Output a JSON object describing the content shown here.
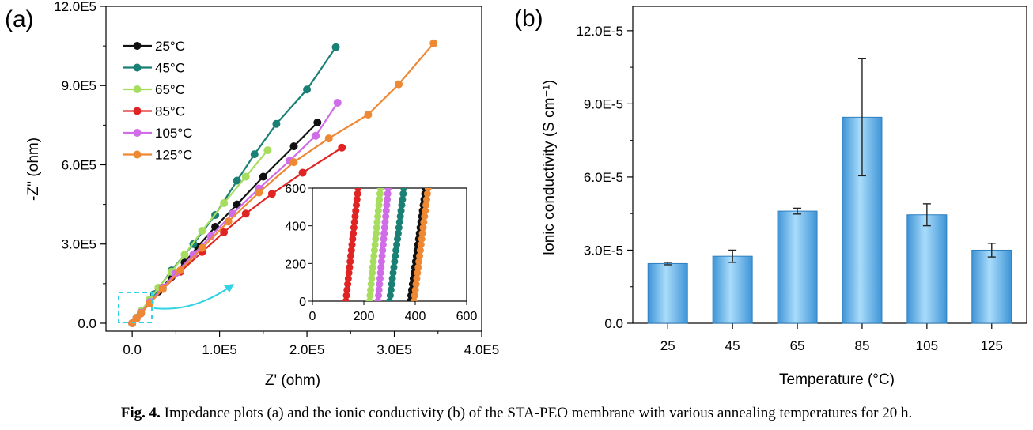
{
  "caption": {
    "label": "Fig. 4.",
    "text": "Impedance plots (a) and the ionic conductivity (b) of the STA-PEO membrane with various annealing temperatures for 20 h."
  },
  "colors": {
    "c25": "#111111",
    "c45": "#1a7f74",
    "c65": "#a6dd5e",
    "c85": "#e02424",
    "c105": "#d06ce8",
    "c125": "#ee8833",
    "bar": "#5fb3e8",
    "inset_marker": "#31d3e4"
  },
  "chart_data": [
    {
      "type": "line",
      "panel_label": "(a)",
      "xlabel": "Z' (ohm)",
      "ylabel": "-Z'' (ohm)",
      "xlim": [
        -30000,
        400000
      ],
      "ylim": [
        -30000,
        1200000
      ],
      "xticks": [
        0,
        100000,
        200000,
        300000,
        400000
      ],
      "xtick_labels": [
        "0.0",
        "1.0E5",
        "2.0E5",
        "3.0E5",
        "4.0E5"
      ],
      "yticks": [
        0,
        300000,
        600000,
        900000,
        1200000
      ],
      "ytick_labels": [
        "0.0",
        "3.0E5",
        "6.0E5",
        "9.0E5",
        "12.0E5"
      ],
      "legend_position": "top-left",
      "series": [
        {
          "name": "25°C",
          "color_key": "c25",
          "x": [
            0,
            5000,
            10000,
            20000,
            30000,
            45000,
            60000,
            75000,
            95000,
            120000,
            150000,
            185000,
            212000
          ],
          "y": [
            0,
            20000,
            40000,
            80000,
            120000,
            175000,
            230000,
            290000,
            365000,
            450000,
            555000,
            670000,
            760000
          ]
        },
        {
          "name": "45°C",
          "color_key": "c45",
          "x": [
            0,
            10000,
            25000,
            45000,
            70000,
            95000,
            120000,
            140000,
            165000,
            200000,
            233000
          ],
          "y": [
            0,
            45000,
            110000,
            200000,
            300000,
            410000,
            540000,
            640000,
            755000,
            885000,
            1045000
          ]
        },
        {
          "name": "65°C",
          "color_key": "c65",
          "x": [
            0,
            5000,
            10000,
            20000,
            30000,
            45000,
            60000,
            80000,
            105000,
            130000,
            155000
          ],
          "y": [
            0,
            22000,
            45000,
            90000,
            135000,
            195000,
            260000,
            350000,
            455000,
            555000,
            655000
          ]
        },
        {
          "name": "85°C",
          "color_key": "c85",
          "x": [
            0,
            5000,
            10000,
            20000,
            35000,
            55000,
            80000,
            105000,
            130000,
            160000,
            195000,
            240000
          ],
          "y": [
            0,
            18000,
            37000,
            75000,
            130000,
            195000,
            270000,
            345000,
            415000,
            490000,
            570000,
            665000
          ]
        },
        {
          "name": "105°C",
          "color_key": "c105",
          "x": [
            0,
            5000,
            10000,
            20000,
            35000,
            50000,
            70000,
            90000,
            115000,
            145000,
            180000,
            210000,
            235000
          ],
          "y": [
            0,
            20000,
            40000,
            80000,
            135000,
            190000,
            260000,
            330000,
            415000,
            510000,
            615000,
            710000,
            835000
          ]
        },
        {
          "name": "125°C",
          "color_key": "c125",
          "x": [
            0,
            5000,
            10000,
            20000,
            35000,
            55000,
            80000,
            110000,
            145000,
            185000,
            225000,
            270000,
            305000,
            345000
          ],
          "y": [
            0,
            19000,
            38000,
            75000,
            130000,
            200000,
            285000,
            385000,
            495000,
            610000,
            700000,
            790000,
            905000,
            1060000
          ]
        }
      ],
      "inset": {
        "xlim": [
          0,
          600
        ],
        "ylim": [
          0,
          600
        ],
        "xticks": [
          0,
          200,
          400,
          600
        ],
        "xtick_labels": [
          "0",
          "200",
          "400",
          "600"
        ],
        "yticks": [
          0,
          200,
          400,
          600
        ],
        "ytick_labels": [
          "0",
          "200",
          "400",
          "600"
        ],
        "series": [
          {
            "name": "85°C",
            "color_key": "c85",
            "x0": 130,
            "x1": 178
          },
          {
            "name": "65°C",
            "color_key": "c65",
            "x0": 222,
            "x1": 265
          },
          {
            "name": "105°C",
            "color_key": "c105",
            "x0": 255,
            "x1": 295
          },
          {
            "name": "45°C",
            "color_key": "c45",
            "x0": 300,
            "x1": 356
          },
          {
            "name": "25°C",
            "color_key": "c25",
            "x0": 380,
            "x1": 440
          },
          {
            "name": "125°C",
            "color_key": "c125",
            "x0": 395,
            "x1": 450
          }
        ]
      }
    },
    {
      "type": "bar",
      "panel_label": "(b)",
      "title": "",
      "xlabel": "Temperature (°C)",
      "ylabel": "Ionic conductivity (S cm⁻¹)",
      "categories": [
        "25",
        "45",
        "65",
        "85",
        "105",
        "125"
      ],
      "values": [
        2.45e-05,
        2.75e-05,
        4.6e-05,
        8.45e-05,
        4.45e-05,
        3e-05
      ],
      "errors": [
        5e-07,
        2.5e-06,
        1.2e-06,
        2.4e-05,
        4.5e-06,
        2.8e-06
      ],
      "ylim": [
        0,
        0.00013
      ],
      "yticks": [
        0,
        3e-05,
        6e-05,
        9e-05,
        0.00012
      ],
      "ytick_labels": [
        "0.0",
        "3.0E-5",
        "6.0E-5",
        "9.0E-5",
        "12.0E-5"
      ]
    }
  ]
}
